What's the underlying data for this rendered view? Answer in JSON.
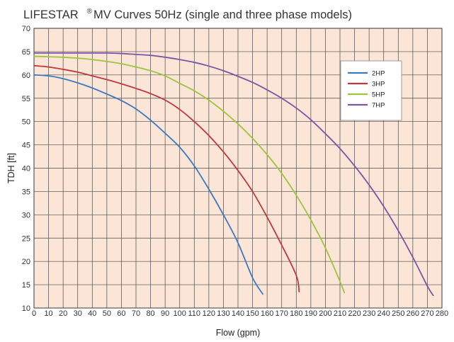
{
  "title": {
    "brand": "LIFESTAR",
    "registered": "®",
    "rest": "MV  Curves 50Hz (single and three phase models)"
  },
  "colors": {
    "plot_bg": "#fbe5d6",
    "grid": "#4a4a4a",
    "2HP": "#3c78c0",
    "3HP": "#c0373c",
    "5HP": "#9cc43c",
    "7HP": "#7d54a3"
  },
  "chart_data": {
    "type": "line",
    "title": "LIFESTAR ® MV  Curves 50Hz (single and three phase models)",
    "xlabel": "Flow (gpm)",
    "ylabel": "TDH [ft]",
    "xlim": [
      0,
      280
    ],
    "ylim": [
      10,
      70
    ],
    "x_ticks": [
      0,
      10,
      20,
      30,
      40,
      50,
      60,
      70,
      80,
      90,
      100,
      110,
      120,
      130,
      140,
      150,
      160,
      170,
      180,
      190,
      200,
      210,
      220,
      230,
      240,
      250,
      260,
      270,
      280
    ],
    "x_tick_labels": [
      "0",
      "10",
      "20",
      "30",
      "40",
      "50",
      "60",
      "70",
      "80",
      "90",
      "100",
      "110",
      "120",
      "130",
      "140",
      "150",
      "160",
      "170",
      "180",
      "190",
      "200",
      "210",
      "220",
      "230",
      "240",
      "250",
      "260",
      "270",
      "280"
    ],
    "y_ticks": [
      10,
      15,
      20,
      25,
      30,
      35,
      40,
      45,
      50,
      55,
      60,
      65,
      70
    ],
    "y_tick_labels": [
      "10",
      "15",
      "20",
      "25",
      "30",
      "35",
      "40",
      "45",
      "50",
      "55",
      "60",
      "65",
      "70"
    ],
    "grid": true,
    "legend_position": "upper-right",
    "series": [
      {
        "name": "2HP",
        "x": [
          0,
          10,
          20,
          30,
          40,
          50,
          60,
          70,
          80,
          90,
          100,
          110,
          120,
          130,
          140,
          150,
          157
        ],
        "y": [
          60,
          59.8,
          59.2,
          58.3,
          57.2,
          55.9,
          54.5,
          52.7,
          50.3,
          47.5,
          44.5,
          40.5,
          35.5,
          30,
          24,
          16.5,
          13
        ]
      },
      {
        "name": "3HP",
        "x": [
          0,
          10,
          20,
          30,
          40,
          50,
          60,
          70,
          80,
          90,
          100,
          110,
          120,
          130,
          140,
          150,
          160,
          170,
          180,
          182
        ],
        "y": [
          62,
          61.7,
          61.2,
          60.6,
          59.8,
          59,
          58.1,
          57.1,
          56,
          54.6,
          52.6,
          50,
          47,
          43.5,
          39.5,
          35,
          29.5,
          23.5,
          17,
          13.5
        ]
      },
      {
        "name": "5HP",
        "x": [
          0,
          10,
          20,
          30,
          40,
          50,
          60,
          70,
          80,
          90,
          100,
          110,
          120,
          130,
          140,
          150,
          160,
          170,
          180,
          190,
          200,
          210,
          213
        ],
        "y": [
          64,
          63.9,
          63.8,
          63.6,
          63.3,
          62.9,
          62.4,
          61.7,
          60.9,
          59.8,
          58.2,
          56.6,
          54.6,
          52.2,
          49.5,
          46.4,
          42.9,
          38.9,
          34.2,
          28.9,
          22.9,
          15.7,
          13.3
        ]
      },
      {
        "name": "7HP",
        "x": [
          0,
          10,
          20,
          30,
          40,
          50,
          60,
          70,
          80,
          90,
          100,
          110,
          120,
          130,
          140,
          150,
          160,
          170,
          180,
          190,
          200,
          210,
          220,
          230,
          240,
          250,
          260,
          270,
          274
        ],
        "y": [
          64.7,
          64.7,
          64.7,
          64.7,
          64.7,
          64.7,
          64.6,
          64.4,
          64.2,
          63.8,
          63.3,
          62.7,
          61.9,
          60.9,
          59.7,
          58.4,
          56.8,
          55.0,
          52.9,
          50.4,
          47.4,
          44.2,
          40.5,
          36.4,
          31.8,
          26.6,
          20.9,
          14.7,
          12.7
        ]
      }
    ]
  }
}
